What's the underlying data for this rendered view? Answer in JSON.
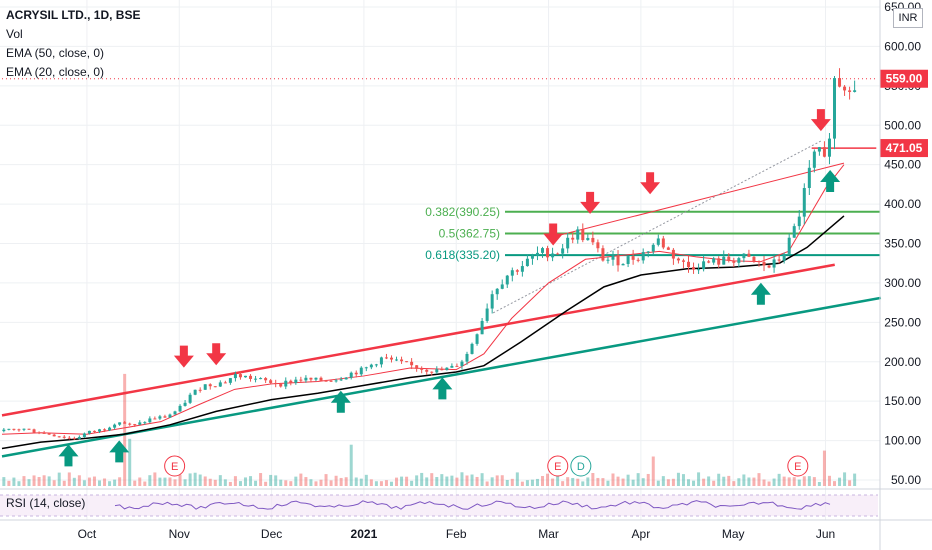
{
  "header": {
    "symbol_line": "ACRYSIL LTD., 1D, BSE",
    "vol": "Vol",
    "ema50": "EMA (50, close, 0)",
    "ema20": "EMA (20, close, 0)"
  },
  "rsi_label": "RSI (14, close)",
  "currency_badge": "INR",
  "price_badges": [
    {
      "value": 559,
      "label": "559.00",
      "color": "#f23645"
    },
    {
      "value": 471.05,
      "label": "471.05",
      "color": "#f23645"
    }
  ],
  "fib_levels": [
    {
      "label": "0.382(390.25)",
      "value": 390.25,
      "color": "#4caf50"
    },
    {
      "label": "0.5(362.75)",
      "value": 362.75,
      "color": "#4caf50"
    },
    {
      "label": "0.618(335.20)",
      "value": 335.2,
      "color": "#089981"
    }
  ],
  "event_markers": [
    {
      "label": "E",
      "month": 10.95,
      "color": "#f23645"
    },
    {
      "label": "E",
      "month": 15.1,
      "color": "#f23645"
    },
    {
      "label": "D",
      "month": 15.35,
      "color": "#26a69a"
    },
    {
      "label": "E",
      "month": 17.7,
      "color": "#f23645"
    }
  ],
  "colors": {
    "up": "#26a69a",
    "down": "#ef5350",
    "ema50": "#000000",
    "ema20": "#f23645",
    "channel_upper": "#f23645",
    "channel_lower": "#089981",
    "rsi": "#7e57c2",
    "rsi_band": "#f3e5f5",
    "arrow_down": "#f23645",
    "arrow_up": "#089981"
  },
  "chart_data": {
    "type": "candlestick",
    "title": "ACRYSIL LTD., 1D, BSE",
    "x_unit": "month index (Oct 2020 = 10, Jan 2021 = 13)",
    "x_ticks": [
      {
        "label": "Oct",
        "x": 10
      },
      {
        "label": "Nov",
        "x": 11
      },
      {
        "label": "Dec",
        "x": 12
      },
      {
        "label": "2021",
        "x": 13
      },
      {
        "label": "Feb",
        "x": 14
      },
      {
        "label": "Mar",
        "x": 15
      },
      {
        "label": "Apr",
        "x": 16
      },
      {
        "label": "May",
        "x": 17
      },
      {
        "label": "Jun",
        "x": 18
      }
    ],
    "y_ticks": [
      50,
      100,
      150,
      200,
      250,
      300,
      350,
      400,
      450,
      500,
      550,
      600,
      650
    ],
    "y_tick_labels": [
      "50.00",
      "100.00",
      "150.00",
      "200.00",
      "250.00",
      "300.00",
      "350.00",
      "400.00",
      "450.00",
      "500.00",
      "550.00",
      "600.00",
      "650.00"
    ],
    "ylim": [
      45,
      655
    ],
    "xlim": [
      9.08,
      18.4
    ],
    "price_path": [
      [
        9.08,
        112
      ],
      [
        9.3,
        115
      ],
      [
        9.6,
        108
      ],
      [
        9.85,
        102
      ],
      [
        10.0,
        110
      ],
      [
        10.2,
        115
      ],
      [
        10.33,
        125
      ],
      [
        10.5,
        118
      ],
      [
        10.7,
        128
      ],
      [
        10.85,
        130
      ],
      [
        11.0,
        140
      ],
      [
        11.1,
        155
      ],
      [
        11.25,
        170
      ],
      [
        11.4,
        172
      ],
      [
        11.5,
        175
      ],
      [
        11.6,
        183
      ],
      [
        11.75,
        180
      ],
      [
        11.9,
        176
      ],
      [
        12.1,
        172
      ],
      [
        12.3,
        178
      ],
      [
        12.5,
        176
      ],
      [
        12.7,
        178
      ],
      [
        12.85,
        185
      ],
      [
        13.0,
        190
      ],
      [
        13.2,
        205
      ],
      [
        13.4,
        198
      ],
      [
        13.6,
        192
      ],
      [
        13.8,
        188
      ],
      [
        13.95,
        192
      ],
      [
        14.1,
        205
      ],
      [
        14.25,
        245
      ],
      [
        14.4,
        290
      ],
      [
        14.55,
        310
      ],
      [
        14.75,
        325
      ],
      [
        14.9,
        338
      ],
      [
        15.1,
        340
      ],
      [
        15.3,
        365
      ],
      [
        15.45,
        352
      ],
      [
        15.6,
        330
      ],
      [
        15.8,
        328
      ],
      [
        16.0,
        335
      ],
      [
        16.1,
        345
      ],
      [
        16.2,
        355
      ],
      [
        16.3,
        340
      ],
      [
        16.5,
        320
      ],
      [
        16.7,
        325
      ],
      [
        16.9,
        328
      ],
      [
        17.1,
        332
      ],
      [
        17.25,
        325
      ],
      [
        17.4,
        320
      ],
      [
        17.5,
        330
      ],
      [
        17.6,
        350
      ],
      [
        17.7,
        380
      ],
      [
        17.8,
        430
      ],
      [
        17.9,
        470
      ],
      [
        18.0,
        450
      ],
      [
        18.05,
        500
      ],
      [
        18.1,
        560
      ],
      [
        18.2,
        550
      ],
      [
        18.3,
        555
      ]
    ],
    "ema20": [
      [
        9.08,
        108
      ],
      [
        9.5,
        110
      ],
      [
        10.0,
        108
      ],
      [
        10.3,
        114
      ],
      [
        10.8,
        124
      ],
      [
        11.2,
        145
      ],
      [
        11.6,
        165
      ],
      [
        12.0,
        172
      ],
      [
        12.5,
        175
      ],
      [
        13.0,
        182
      ],
      [
        13.5,
        192
      ],
      [
        14.0,
        190
      ],
      [
        14.3,
        210
      ],
      [
        14.6,
        255
      ],
      [
        15.0,
        300
      ],
      [
        15.4,
        330
      ],
      [
        15.8,
        335
      ],
      [
        16.2,
        340
      ],
      [
        16.6,
        333
      ],
      [
        17.0,
        328
      ],
      [
        17.3,
        327
      ],
      [
        17.6,
        340
      ],
      [
        17.8,
        380
      ],
      [
        18.0,
        420
      ],
      [
        18.2,
        450
      ]
    ],
    "ema50": [
      [
        9.08,
        90
      ],
      [
        9.5,
        98
      ],
      [
        10.0,
        103
      ],
      [
        10.4,
        108
      ],
      [
        10.9,
        120
      ],
      [
        11.4,
        137
      ],
      [
        12.0,
        152
      ],
      [
        12.5,
        160
      ],
      [
        13.0,
        170
      ],
      [
        13.5,
        180
      ],
      [
        14.0,
        187
      ],
      [
        14.3,
        195
      ],
      [
        14.7,
        225
      ],
      [
        15.2,
        265
      ],
      [
        15.6,
        295
      ],
      [
        16.0,
        310
      ],
      [
        16.5,
        318
      ],
      [
        17.0,
        320
      ],
      [
        17.5,
        325
      ],
      [
        17.8,
        345
      ],
      [
        18.0,
        365
      ],
      [
        18.2,
        385
      ]
    ],
    "trendlines": [
      {
        "name": "channel_upper",
        "from": [
          9.08,
          132
        ],
        "to": [
          18.1,
          323
        ]
      },
      {
        "name": "channel_lower",
        "from": [
          9.08,
          80
        ],
        "to": [
          18.6,
          281
        ]
      },
      {
        "name": "upper_thin",
        "from": [
          15.1,
          360
        ],
        "to": [
          18.2,
          452
        ]
      },
      {
        "name": "dotted_trend",
        "from": [
          14.4,
          262
        ],
        "to": [
          17.95,
          480
        ]
      },
      {
        "name": "resistance_471",
        "from": [
          17.85,
          471.05
        ],
        "to": [
          18.55,
          471.05
        ]
      },
      {
        "name": "last_price",
        "from": [
          9.08,
          559
        ],
        "to": [
          18.55,
          559
        ]
      }
    ],
    "down_arrows": [
      [
        11.05,
        190
      ],
      [
        11.4,
        193
      ],
      [
        15.05,
        345
      ],
      [
        15.45,
        385
      ],
      [
        16.1,
        410
      ],
      [
        17.95,
        490
      ]
    ],
    "up_arrows": [
      [
        9.8,
        80
      ],
      [
        10.35,
        85
      ],
      [
        12.75,
        148
      ],
      [
        13.85,
        165
      ],
      [
        17.3,
        285
      ],
      [
        18.05,
        428
      ]
    ],
    "volume_spikes": [
      {
        "x": 10.4,
        "rel": 0.95
      },
      {
        "x": 10.45,
        "rel": 0.4
      },
      {
        "x": 12.85,
        "rel": 0.35
      },
      {
        "x": 16.15,
        "rel": 0.25
      },
      {
        "x": 18.0,
        "rel": 0.3
      }
    ]
  }
}
